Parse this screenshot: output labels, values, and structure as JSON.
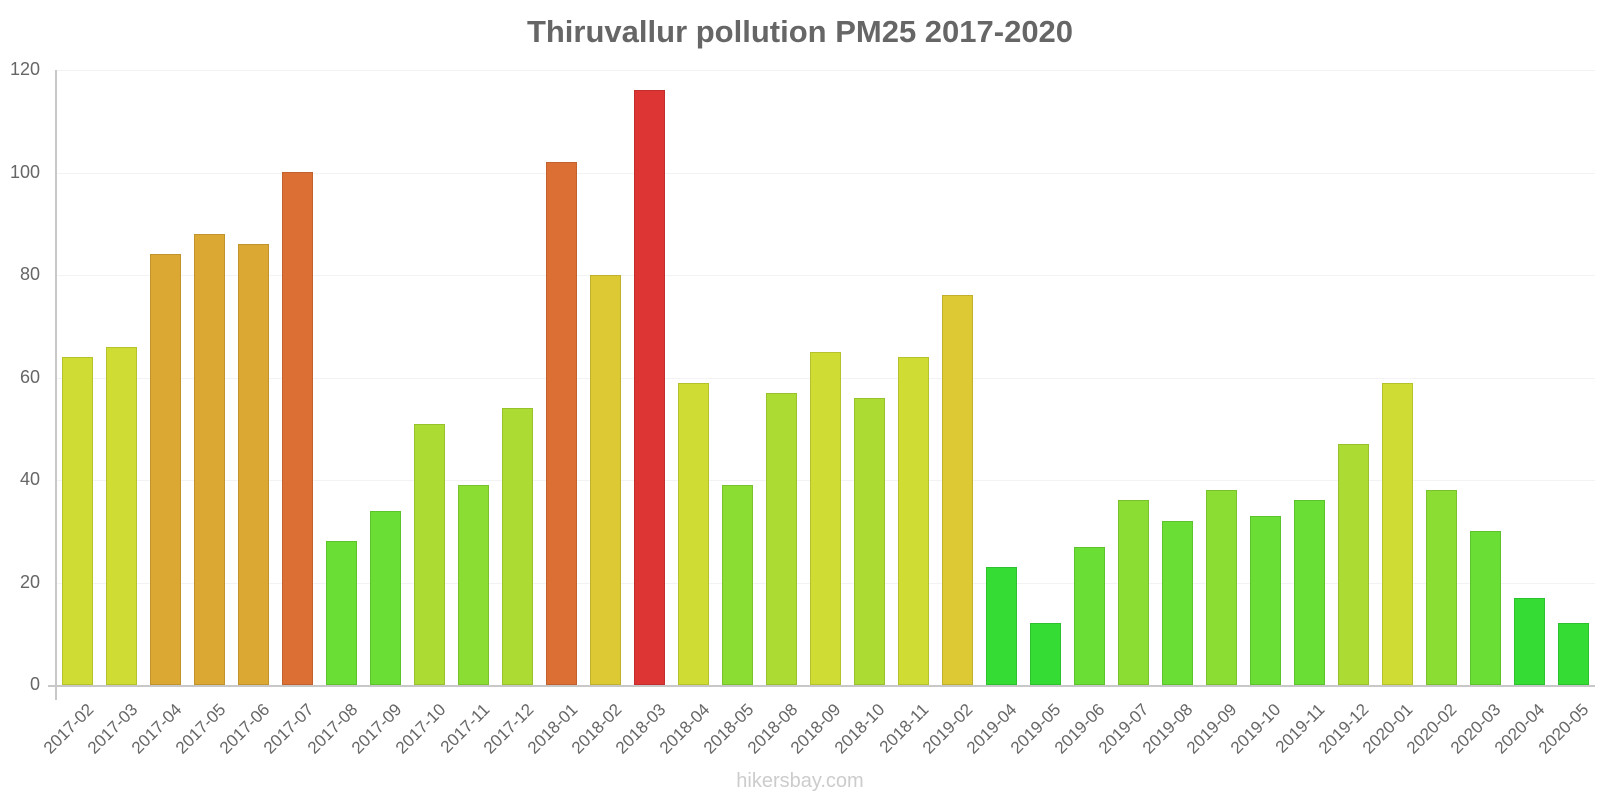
{
  "chart_data": {
    "type": "bar",
    "title": "Thiruvallur pollution PM25 2017-2020",
    "xlabel": "",
    "ylabel": "",
    "ylim": [
      0,
      120
    ],
    "yticks": [
      0,
      20,
      40,
      60,
      80,
      100,
      120
    ],
    "grid": true,
    "legend": null,
    "categories": [
      "2017-02",
      "2017-03",
      "2017-04",
      "2017-05",
      "2017-06",
      "2017-07",
      "2017-08",
      "2017-09",
      "2017-10",
      "2017-11",
      "2017-12",
      "2018-01",
      "2018-02",
      "2018-03",
      "2018-04",
      "2018-05",
      "2018-08",
      "2018-09",
      "2018-10",
      "2018-11",
      "2019-02",
      "2019-04",
      "2019-05",
      "2019-06",
      "2019-07",
      "2019-08",
      "2019-09",
      "2019-10",
      "2019-11",
      "2019-12",
      "2020-01",
      "2020-02",
      "2020-03",
      "2020-04",
      "2020-05"
    ],
    "values": [
      64,
      66,
      84,
      88,
      86,
      100,
      28,
      34,
      51,
      39,
      54,
      102,
      80,
      116,
      59,
      39,
      57,
      65,
      56,
      64,
      76,
      23,
      12,
      27,
      36,
      32,
      38,
      33,
      36,
      47,
      59,
      38,
      30,
      17,
      12
    ],
    "colors": [
      "#cfdc34",
      "#cfdc34",
      "#dba834",
      "#dba834",
      "#dba834",
      "#dc6f34",
      "#6ade34",
      "#6ade34",
      "#acdc34",
      "#8bdd34",
      "#acdc34",
      "#dc6f34",
      "#dcc934",
      "#dc3534",
      "#cfdc34",
      "#8bdd34",
      "#acdc34",
      "#cfdc34",
      "#acdc34",
      "#cfdc34",
      "#dcc934",
      "#34dc34",
      "#34dc34",
      "#6ade34",
      "#8bdd34",
      "#6ade34",
      "#8bdd34",
      "#6ade34",
      "#6ade34",
      "#acdc34",
      "#cfdc34",
      "#8bdd34",
      "#6ade34",
      "#34dc34",
      "#34dc34"
    ]
  },
  "watermark": "hikersbay.com"
}
